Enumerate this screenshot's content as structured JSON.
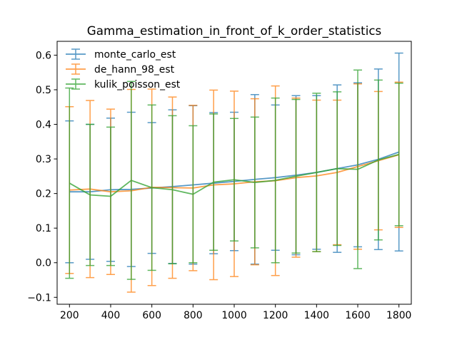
{
  "chart_data": {
    "type": "line",
    "title": "Gamma_estimation_in_front_of_k_order_statistics",
    "xlabel": "",
    "ylabel": "",
    "x": [
      200,
      300,
      400,
      500,
      600,
      700,
      800,
      900,
      1000,
      1100,
      1200,
      1300,
      1400,
      1500,
      1600,
      1700,
      1800
    ],
    "xlim": [
      140,
      1860
    ],
    "ylim": [
      -0.12,
      0.64
    ],
    "x_ticks": [
      200,
      400,
      600,
      800,
      1000,
      1200,
      1400,
      1600,
      1800
    ],
    "y_ticks": [
      -0.1,
      0.0,
      0.1,
      0.2,
      0.3,
      0.4,
      0.5,
      0.6
    ],
    "y_tick_labels": [
      "−0.1",
      "0.0",
      "0.1",
      "0.2",
      "0.3",
      "0.4",
      "0.5",
      "0.6"
    ],
    "grid": false,
    "legend_position": "upper-left",
    "series": [
      {
        "name": "monte_carlo_est",
        "color": "#1f77b4",
        "values": [
          0.205,
          0.205,
          0.211,
          0.212,
          0.216,
          0.22,
          0.225,
          0.23,
          0.235,
          0.241,
          0.246,
          0.253,
          0.261,
          0.272,
          0.283,
          0.299,
          0.32
        ],
        "yerr": [
          0.205,
          0.195,
          0.207,
          0.223,
          0.189,
          0.222,
          0.229,
          0.204,
          0.2,
          0.245,
          0.21,
          0.23,
          0.222,
          0.242,
          0.237,
          0.261,
          0.286
        ]
      },
      {
        "name": "de_hann_98_est",
        "color": "#ff7f0e",
        "values": [
          0.21,
          0.213,
          0.205,
          0.208,
          0.218,
          0.217,
          0.216,
          0.225,
          0.228,
          0.234,
          0.237,
          0.246,
          0.251,
          0.261,
          0.278,
          0.295,
          0.312
        ],
        "yerr": [
          0.241,
          0.256,
          0.239,
          0.293,
          0.284,
          0.262,
          0.239,
          0.274,
          0.268,
          0.24,
          0.274,
          0.23,
          0.219,
          0.209,
          0.239,
          0.2,
          0.21
        ]
      },
      {
        "name": "kulik_poisson_est",
        "color": "#2ca02c",
        "values": [
          0.23,
          0.196,
          0.192,
          0.238,
          0.217,
          0.211,
          0.198,
          0.233,
          0.24,
          0.232,
          0.238,
          0.25,
          0.261,
          0.272,
          0.27,
          0.297,
          0.313
        ],
        "yerr": [
          0.275,
          0.204,
          0.2,
          0.286,
          0.239,
          0.214,
          0.198,
          0.197,
          0.177,
          0.189,
          0.238,
          0.222,
          0.229,
          0.222,
          0.287,
          0.231,
          0.206
        ]
      }
    ]
  }
}
